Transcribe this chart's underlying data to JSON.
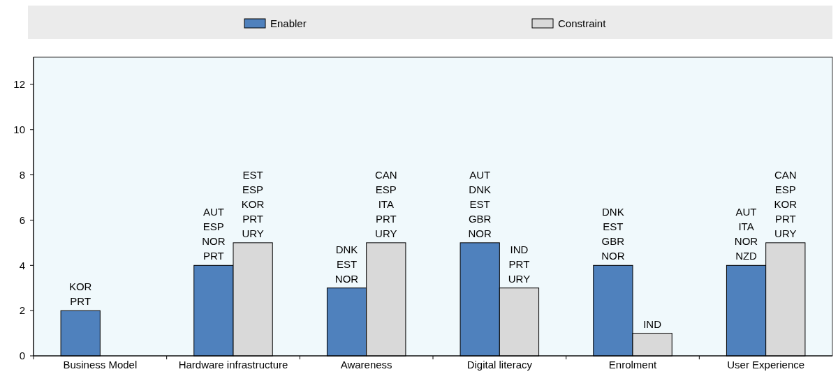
{
  "chart_data": {
    "type": "bar",
    "categories": [
      "Business Model",
      "Hardware infrastructure",
      "Awareness",
      "Digital literacy",
      "Enrolment",
      "User Experience"
    ],
    "series": [
      {
        "name": "Enabler",
        "color": "#4f81bd",
        "values": [
          2,
          4,
          3,
          5,
          4,
          4
        ],
        "value_labels": [
          "KOR\nPRT",
          "AUT\nESP\nNOR\nPRT",
          "DNK\nEST\nNOR",
          "AUT\nDNK\nEST\nGBR\nNOR",
          "DNK\nEST\nGBR\nNOR",
          "AUT\nITA\nNOR\nNZD"
        ]
      },
      {
        "name": "Constraint",
        "color": "#d9d9d9",
        "values": [
          null,
          5,
          5,
          3,
          1,
          5
        ],
        "value_labels": [
          null,
          "EST\nESP\nKOR\nPRT\nURY",
          "CAN\nESP\nITA\nPRT\nURY",
          "IND\nPRT\nURY",
          "IND",
          "CAN\nESP\nKOR\nPRT\nURY"
        ]
      }
    ],
    "ylim": [
      0,
      13.2
    ],
    "yticks": [
      0,
      2,
      4,
      6,
      8,
      10,
      12
    ],
    "grid": false,
    "legend": "top"
  }
}
